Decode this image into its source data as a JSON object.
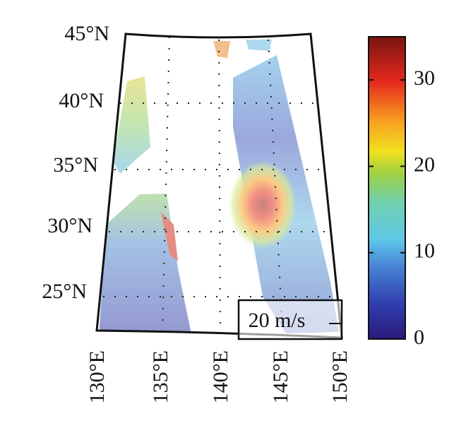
{
  "map": {
    "lat_labels": [
      "45°N",
      "40°N",
      "35°N",
      "30°N",
      "25°N"
    ],
    "lon_labels": [
      "130°E",
      "135°E",
      "140°E",
      "145°E",
      "150°E"
    ]
  },
  "colorbar": {
    "range": [
      0,
      35
    ],
    "ticks": [
      0,
      10,
      20,
      30
    ]
  },
  "scale_label": "20 m/s"
}
